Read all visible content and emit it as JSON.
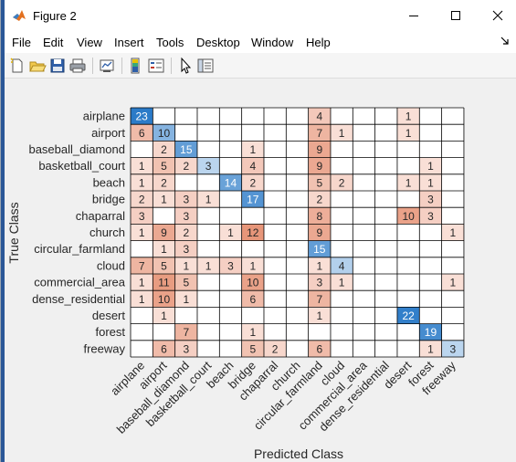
{
  "window": {
    "title": "Figure 2",
    "icon": "matlab-icon"
  },
  "menu": {
    "items": [
      "File",
      "Edit",
      "View",
      "Insert",
      "Tools",
      "Desktop",
      "Window",
      "Help"
    ]
  },
  "toolbar": {
    "buttons": [
      "new-figure-icon",
      "open-file-icon",
      "save-icon",
      "print-icon",
      "link-plot-icon",
      "insert-colorbar-icon",
      "insert-legend-icon",
      "pointer-icon",
      "property-inspector-icon"
    ]
  },
  "chart_data": {
    "type": "heatmap",
    "xlabel": "Predicted Class",
    "ylabel": "True Class",
    "classes": [
      "airplane",
      "airport",
      "baseball_diamond",
      "basketball_court",
      "beach",
      "bridge",
      "chaparral",
      "church",
      "circular_farmland",
      "cloud",
      "commercial_area",
      "dense_residential",
      "desert",
      "forest",
      "freeway"
    ],
    "matrix": [
      [
        23,
        0,
        0,
        0,
        0,
        0,
        0,
        0,
        4,
        0,
        0,
        0,
        1,
        0,
        0
      ],
      [
        6,
        10,
        0,
        0,
        0,
        0,
        0,
        0,
        7,
        1,
        0,
        0,
        1,
        0,
        0
      ],
      [
        0,
        2,
        15,
        0,
        0,
        1,
        0,
        0,
        9,
        0,
        0,
        0,
        0,
        0,
        0
      ],
      [
        1,
        5,
        2,
        3,
        0,
        4,
        0,
        0,
        9,
        0,
        0,
        0,
        0,
        1,
        0
      ],
      [
        1,
        2,
        0,
        0,
        14,
        2,
        0,
        0,
        5,
        2,
        0,
        0,
        1,
        1,
        0
      ],
      [
        2,
        1,
        3,
        1,
        0,
        17,
        0,
        0,
        2,
        0,
        0,
        0,
        0,
        3,
        0
      ],
      [
        3,
        0,
        3,
        0,
        0,
        0,
        0,
        0,
        8,
        0,
        0,
        0,
        10,
        3,
        0
      ],
      [
        1,
        9,
        2,
        0,
        1,
        12,
        0,
        0,
        9,
        0,
        0,
        0,
        0,
        0,
        1
      ],
      [
        0,
        1,
        3,
        0,
        0,
        0,
        0,
        0,
        15,
        0,
        0,
        0,
        0,
        0,
        0
      ],
      [
        7,
        5,
        1,
        1,
        3,
        1,
        0,
        0,
        1,
        4,
        0,
        0,
        0,
        0,
        0
      ],
      [
        1,
        11,
        5,
        0,
        0,
        10,
        0,
        0,
        3,
        1,
        0,
        0,
        0,
        0,
        1
      ],
      [
        1,
        10,
        1,
        0,
        0,
        6,
        0,
        0,
        7,
        0,
        0,
        0,
        0,
        0,
        0
      ],
      [
        0,
        1,
        0,
        0,
        0,
        0,
        0,
        0,
        1,
        0,
        0,
        0,
        22,
        0,
        0
      ],
      [
        0,
        0,
        7,
        0,
        0,
        1,
        0,
        0,
        0,
        0,
        0,
        0,
        0,
        19,
        0
      ],
      [
        0,
        6,
        3,
        0,
        0,
        5,
        2,
        0,
        6,
        0,
        0,
        0,
        0,
        1,
        3
      ]
    ],
    "colors": {
      "diagonal_high": "#2b7bc8",
      "diagonal_low": "#d6e6f5",
      "offdiag_high": "#e7967a",
      "offdiag_low": "#fbe9e3",
      "grid": "#000000"
    },
    "grid": true
  }
}
